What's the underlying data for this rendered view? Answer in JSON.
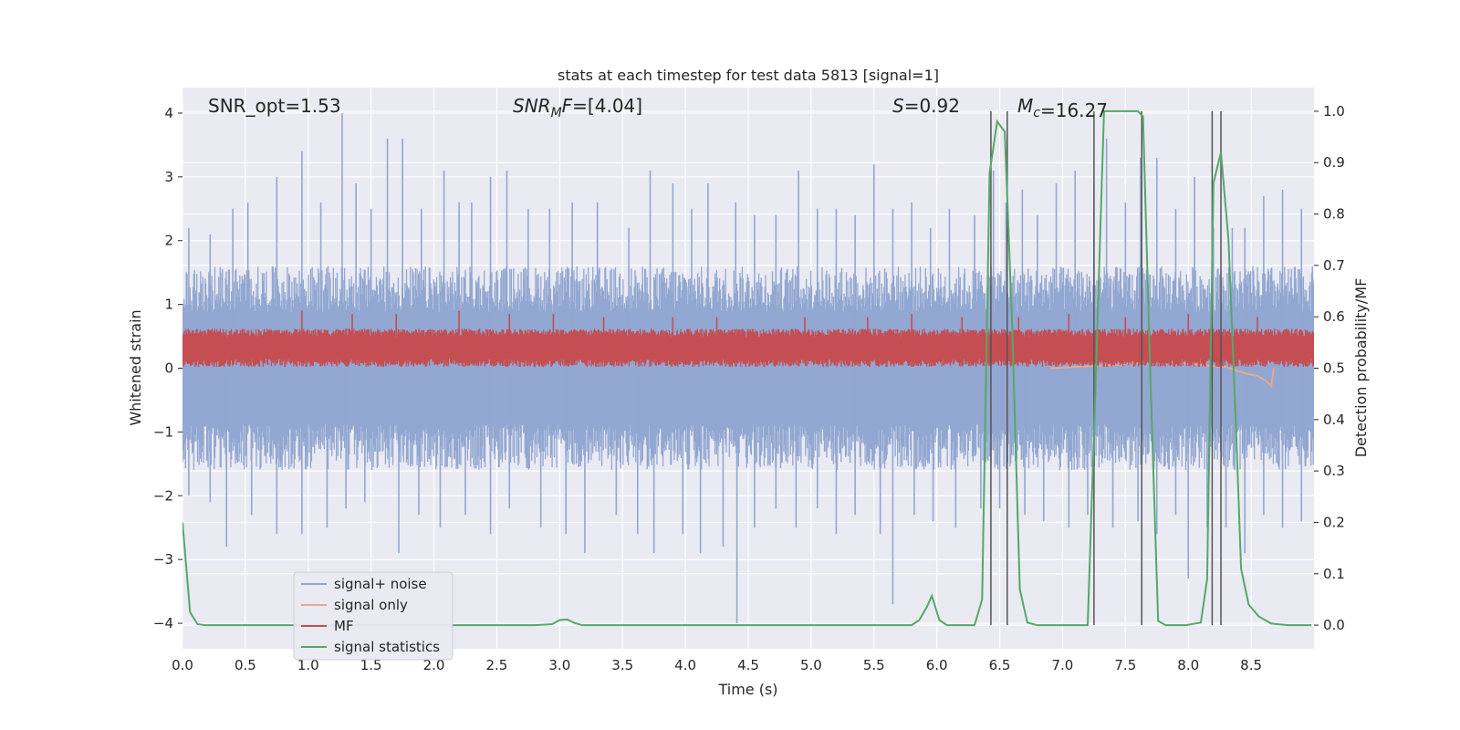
{
  "chart_data": {
    "type": "line",
    "title": "stats at each timestep for test data 5813 [signal=1]",
    "xlabel": "Time (s)",
    "ylabel": "Whitened strain",
    "y2label": "Detection probability/MF",
    "xlim": [
      0,
      9.0
    ],
    "ylim": [
      -4.4,
      4.4
    ],
    "y2lim": [
      -0.046,
      1.046
    ],
    "xticks": [
      "0.0",
      "0.5",
      "1.0",
      "1.5",
      "2.0",
      "2.5",
      "3.0",
      "3.5",
      "4.0",
      "4.5",
      "5.0",
      "5.5",
      "6.0",
      "6.5",
      "7.0",
      "7.5",
      "8.0",
      "8.5"
    ],
    "yticks": [
      "−4",
      "−3",
      "−2",
      "−1",
      "0",
      "1",
      "2",
      "3",
      "4"
    ],
    "y2ticks": [
      "0.0",
      "0.1",
      "0.2",
      "0.3",
      "0.4",
      "0.5",
      "0.6",
      "0.7",
      "0.8",
      "0.9",
      "1.0"
    ],
    "grid": true,
    "annotations": [
      {
        "label": "SNR_opt",
        "value": "1.53"
      },
      {
        "label": "SNR",
        "sub": "M",
        "suffix": "F",
        "value": "[4.04]"
      },
      {
        "label": "S",
        "value": "0.92"
      },
      {
        "label": "M",
        "sub": "c",
        "value": "16.27"
      }
    ],
    "legend": {
      "position": "lower-left",
      "entries": [
        {
          "name": "signal+ noise",
          "color": "#92a7d1"
        },
        {
          "name": "signal only",
          "color": "#e8a88f"
        },
        {
          "name": "MF",
          "color": "#c44e52"
        },
        {
          "name": "signal statistics",
          "color": "#55a868"
        }
      ]
    },
    "series": [
      {
        "name": "signal+ noise",
        "axis": "left",
        "kind": "noise_band",
        "color": "#92a7d1",
        "envelope": {
          "upper": 1.6,
          "lower": -1.6
        },
        "spikes_upper": [
          [
            0.05,
            2.2
          ],
          [
            0.22,
            2.1
          ],
          [
            0.4,
            2.5
          ],
          [
            0.52,
            2.6
          ],
          [
            0.75,
            3.0
          ],
          [
            0.95,
            3.4
          ],
          [
            1.1,
            2.6
          ],
          [
            1.27,
            4.0
          ],
          [
            1.38,
            2.9
          ],
          [
            1.5,
            2.5
          ],
          [
            1.63,
            3.6
          ],
          [
            1.75,
            3.6
          ],
          [
            1.9,
            2.5
          ],
          [
            2.08,
            3.1
          ],
          [
            2.2,
            2.6
          ],
          [
            2.3,
            2.6
          ],
          [
            2.45,
            3.0
          ],
          [
            2.58,
            3.1
          ],
          [
            2.75,
            2.5
          ],
          [
            2.92,
            2.5
          ],
          [
            3.1,
            2.6
          ],
          [
            3.3,
            2.6
          ],
          [
            3.55,
            2.2
          ],
          [
            3.72,
            3.1
          ],
          [
            3.9,
            2.9
          ],
          [
            4.05,
            2.5
          ],
          [
            4.18,
            2.9
          ],
          [
            4.4,
            2.6
          ],
          [
            4.55,
            2.4
          ],
          [
            4.72,
            2.4
          ],
          [
            4.9,
            3.1
          ],
          [
            5.05,
            2.5
          ],
          [
            5.2,
            2.5
          ],
          [
            5.35,
            2.4
          ],
          [
            5.5,
            3.2
          ],
          [
            5.65,
            2.5
          ],
          [
            5.8,
            2.6
          ],
          [
            5.95,
            2.2
          ],
          [
            6.1,
            2.5
          ],
          [
            6.3,
            2.4
          ],
          [
            6.45,
            3.1
          ],
          [
            6.55,
            2.6
          ],
          [
            6.68,
            2.8
          ],
          [
            6.8,
            2.4
          ],
          [
            6.95,
            2.9
          ],
          [
            7.1,
            3.1
          ],
          [
            7.25,
            2.9
          ],
          [
            7.35,
            3.6
          ],
          [
            7.5,
            2.6
          ],
          [
            7.62,
            3.3
          ],
          [
            7.75,
            3.3
          ],
          [
            7.9,
            2.5
          ],
          [
            8.05,
            3.0
          ],
          [
            8.2,
            2.2
          ],
          [
            8.35,
            2.2
          ],
          [
            8.45,
            2.2
          ],
          [
            8.6,
            2.7
          ],
          [
            8.75,
            2.8
          ],
          [
            8.9,
            2.5
          ]
        ],
        "spikes_lower": [
          [
            0.05,
            -2.0
          ],
          [
            0.22,
            -2.1
          ],
          [
            0.35,
            -2.8
          ],
          [
            0.55,
            -2.3
          ],
          [
            0.75,
            -2.6
          ],
          [
            0.95,
            -2.6
          ],
          [
            1.15,
            -2.5
          ],
          [
            1.3,
            -2.2
          ],
          [
            1.45,
            -2.1
          ],
          [
            1.72,
            -2.9
          ],
          [
            1.88,
            -2.3
          ],
          [
            2.05,
            -2.5
          ],
          [
            2.25,
            -2.3
          ],
          [
            2.45,
            -2.6
          ],
          [
            2.6,
            -2.2
          ],
          [
            2.85,
            -2.5
          ],
          [
            3.05,
            -2.6
          ],
          [
            3.2,
            -2.9
          ],
          [
            3.45,
            -2.3
          ],
          [
            3.62,
            -2.6
          ],
          [
            3.75,
            -2.9
          ],
          [
            3.98,
            -2.6
          ],
          [
            4.12,
            -2.9
          ],
          [
            4.3,
            -2.8
          ],
          [
            4.41,
            -4.0
          ],
          [
            4.55,
            -2.5
          ],
          [
            4.72,
            -2.2
          ],
          [
            4.88,
            -2.5
          ],
          [
            5.05,
            -2.2
          ],
          [
            5.2,
            -2.6
          ],
          [
            5.35,
            -2.3
          ],
          [
            5.55,
            -2.6
          ],
          [
            5.65,
            -3.7
          ],
          [
            5.82,
            -2.3
          ],
          [
            5.97,
            -2.4
          ],
          [
            6.15,
            -2.5
          ],
          [
            6.35,
            -2.2
          ],
          [
            6.5,
            -2.2
          ],
          [
            6.7,
            -2.3
          ],
          [
            6.85,
            -2.4
          ],
          [
            7.05,
            -2.5
          ],
          [
            7.2,
            -2.3
          ],
          [
            7.4,
            -2.5
          ],
          [
            7.6,
            -2.4
          ],
          [
            7.75,
            -2.6
          ],
          [
            7.9,
            -2.3
          ],
          [
            8.0,
            -3.3
          ],
          [
            8.15,
            -2.5
          ],
          [
            8.3,
            -2.5
          ],
          [
            8.45,
            -2.9
          ],
          [
            8.6,
            -2.3
          ],
          [
            8.75,
            -2.5
          ],
          [
            8.9,
            -2.4
          ]
        ]
      },
      {
        "name": "signal only",
        "axis": "left",
        "color": "#e8a88f",
        "points": [
          [
            6.9,
            0.0
          ],
          [
            7.4,
            0.05
          ],
          [
            7.8,
            0.12
          ],
          [
            8.1,
            0.05
          ],
          [
            8.3,
            0.02
          ],
          [
            8.45,
            -0.08
          ],
          [
            8.55,
            -0.12
          ],
          [
            8.62,
            -0.2
          ],
          [
            8.66,
            -0.28
          ],
          [
            8.68,
            0.0
          ]
        ]
      },
      {
        "name": "MF",
        "axis": "left",
        "kind": "noise_band",
        "color": "#c44e52",
        "envelope": {
          "upper": 0.62,
          "lower": 0.02
        },
        "spikes_upper": [
          [
            0.95,
            0.9
          ],
          [
            1.35,
            0.85
          ],
          [
            1.7,
            0.85
          ],
          [
            2.2,
            0.9
          ],
          [
            2.6,
            0.85
          ],
          [
            2.95,
            0.85
          ],
          [
            3.35,
            0.8
          ],
          [
            3.9,
            0.8
          ],
          [
            4.25,
            0.8
          ],
          [
            4.95,
            0.8
          ],
          [
            5.45,
            0.8
          ],
          [
            5.8,
            0.85
          ],
          [
            6.2,
            0.8
          ],
          [
            6.65,
            0.8
          ],
          [
            7.05,
            0.85
          ],
          [
            7.5,
            0.8
          ],
          [
            8.0,
            0.85
          ],
          [
            8.55,
            0.8
          ]
        ]
      },
      {
        "name": "signal statistics",
        "axis": "right",
        "color": "#55a868",
        "x": [
          0.0,
          0.06,
          0.12,
          0.18,
          0.4,
          2.8,
          2.94,
          3.0,
          3.06,
          3.12,
          3.18,
          3.25,
          5.8,
          5.86,
          5.92,
          5.96,
          6.02,
          6.08,
          6.3,
          6.36,
          6.42,
          6.48,
          6.54,
          6.6,
          6.66,
          6.72,
          6.8,
          6.9,
          7.2,
          7.26,
          7.33,
          7.4,
          7.5,
          7.6,
          7.64,
          7.7,
          7.76,
          7.82,
          7.98,
          8.1,
          8.15,
          8.2,
          8.26,
          8.32,
          8.38,
          8.42,
          8.48,
          8.56,
          8.66,
          8.8,
          8.98
        ],
        "y": [
          0.2,
          0.025,
          0.002,
          0.0,
          0.0,
          0.0,
          0.002,
          0.01,
          0.011,
          0.004,
          0.0,
          0.0,
          0.0,
          0.01,
          0.035,
          0.057,
          0.01,
          0.0,
          0.0,
          0.05,
          0.88,
          0.98,
          0.96,
          0.58,
          0.07,
          0.005,
          0.0,
          0.0,
          0.0,
          0.45,
          1.0,
          1.0,
          1.0,
          1.0,
          0.99,
          0.47,
          0.008,
          0.0,
          0.0,
          0.005,
          0.09,
          0.86,
          0.92,
          0.75,
          0.38,
          0.11,
          0.04,
          0.017,
          0.003,
          0.0,
          0.0
        ]
      }
    ],
    "vertical_markers": [
      6.43,
      6.56,
      7.25,
      7.63,
      8.19,
      8.26
    ]
  }
}
